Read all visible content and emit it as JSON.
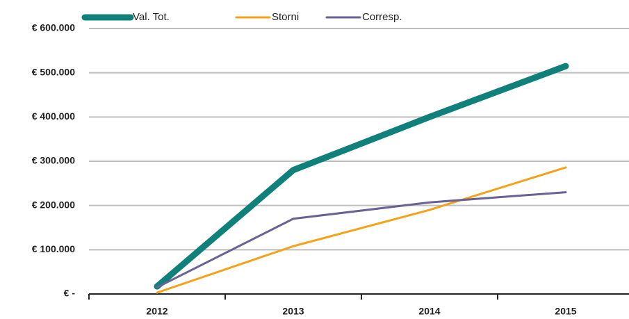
{
  "chart_data": {
    "type": "line",
    "categories": [
      "2012",
      "2013",
      "2014",
      "2015"
    ],
    "series": [
      {
        "name": "Val. Tot.",
        "color": "#10807a",
        "line_width": 9,
        "values": [
          17000,
          280000,
          400000,
          515000
        ]
      },
      {
        "name": "Storni",
        "color": "#f5a21b",
        "line_width": 3,
        "values": [
          3000,
          108000,
          190000,
          286000
        ]
      },
      {
        "name": "Corresp.",
        "color": "#6a6294",
        "line_width": 3,
        "values": [
          15000,
          170000,
          207000,
          230000
        ]
      }
    ],
    "ylim": [
      0,
      600000
    ],
    "yticks": [
      {
        "value": 0,
        "label": "€ -"
      },
      {
        "value": 100000,
        "label": "€ 100.000"
      },
      {
        "value": 200000,
        "label": "€ 200.000"
      },
      {
        "value": 300000,
        "label": "€ 300.000"
      },
      {
        "value": 400000,
        "label": "€ 400.000"
      },
      {
        "value": 500000,
        "label": "€ 500.000"
      },
      {
        "value": 600000,
        "label": "€ 600.000"
      }
    ],
    "grid": true,
    "legend": "top"
  }
}
